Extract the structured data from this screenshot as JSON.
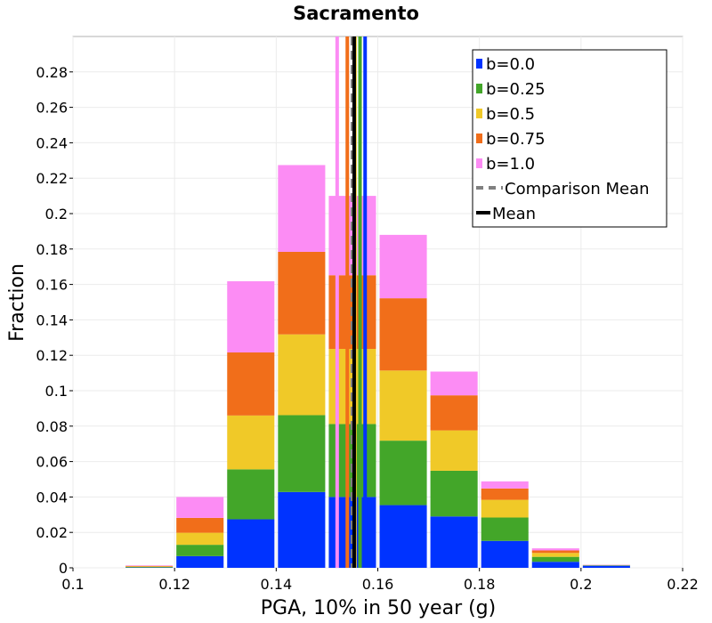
{
  "chart_data": {
    "type": "bar",
    "stacked": true,
    "title": "Sacramento",
    "xlabel": "PGA, 10% in 50 year (g)",
    "ylabel": "Fraction",
    "xlim": [
      0.1,
      0.22
    ],
    "ylim": [
      0,
      0.3
    ],
    "x_ticks": [
      "0.1",
      "0.12",
      "0.14",
      "0.16",
      "0.18",
      "0.2",
      "0.22"
    ],
    "y_ticks": [
      "0",
      "0.02",
      "0.04",
      "0.06",
      "0.08",
      "0.1",
      "0.12",
      "0.14",
      "0.16",
      "0.18",
      "0.2",
      "0.22",
      "0.24",
      "0.26",
      "0.28"
    ],
    "grid": true,
    "bin_width": 0.01,
    "bin_starts": [
      0.11,
      0.12,
      0.13,
      0.14,
      0.15,
      0.16,
      0.17,
      0.18,
      0.19,
      0.2
    ],
    "series": [
      {
        "name": "b=0.0",
        "color": "#0033ff",
        "values": [
          0.0002,
          0.0066,
          0.0274,
          0.0428,
          0.04,
          0.0354,
          0.029,
          0.0152,
          0.0034,
          0.0012
        ]
      },
      {
        "name": "b=0.25",
        "color": "#43a629",
        "values": [
          0.0003,
          0.0064,
          0.0282,
          0.0434,
          0.0412,
          0.0364,
          0.0258,
          0.0132,
          0.0028,
          0.0002
        ]
      },
      {
        "name": "b=0.5",
        "color": "#f0c928",
        "values": [
          0.0003,
          0.0068,
          0.0304,
          0.0456,
          0.0424,
          0.0396,
          0.0228,
          0.01,
          0.0022,
          0.0001
        ]
      },
      {
        "name": "b=0.75",
        "color": "#f16e1a",
        "values": [
          0.0003,
          0.0084,
          0.0356,
          0.0466,
          0.0416,
          0.0408,
          0.0198,
          0.0064,
          0.0014,
          0.0001
        ]
      },
      {
        "name": "b=1.0",
        "color": "#fc8cf4",
        "values": [
          0.0003,
          0.0118,
          0.0402,
          0.049,
          0.0448,
          0.0358,
          0.0134,
          0.004,
          0.0012,
          0.0001
        ]
      }
    ],
    "series_means": [
      0.1575,
      0.1565,
      0.1555,
      0.154,
      0.152
    ],
    "comparison_mean": 0.155,
    "mean": 0.155,
    "legend": {
      "placement": "top-right",
      "entries": [
        {
          "label": "b=0.0",
          "style": "patch",
          "color": "#0033ff"
        },
        {
          "label": "b=0.25",
          "style": "patch",
          "color": "#43a629"
        },
        {
          "label": "b=0.5",
          "style": "patch",
          "color": "#f0c928"
        },
        {
          "label": "b=0.75",
          "style": "patch",
          "color": "#f16e1a"
        },
        {
          "label": "b=1.0",
          "style": "patch",
          "color": "#fc8cf4"
        },
        {
          "label": "Comparison Mean",
          "style": "dashed",
          "color": "#808080"
        },
        {
          "label": "Mean",
          "style": "solid",
          "color": "#000000"
        }
      ]
    }
  }
}
